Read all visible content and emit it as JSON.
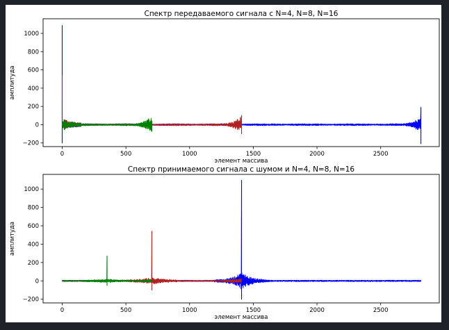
{
  "colors": {
    "blue": "#0000ff",
    "red": "#b22222",
    "green": "#008000",
    "frame": "#1e2229"
  },
  "chart_data": [
    {
      "type": "line",
      "title": "Спектр передаваемого сигнала с N=4, N=8, N=16",
      "xlabel": "элемент массива",
      "ylabel": "амплитуда",
      "xlim": [
        -150,
        2960
      ],
      "ylim": [
        -240,
        1160
      ],
      "xticks": [
        0,
        500,
        1000,
        1500,
        2000,
        2500
      ],
      "yticks": [
        -200,
        0,
        200,
        400,
        600,
        800,
        1000
      ],
      "grid": false,
      "series": [
        {
          "color": "blue",
          "x_range": [
            0,
            2816
          ],
          "peaks": [
            [
              0,
              1090
            ],
            [
              0,
              -200
            ],
            [
              2816,
              190
            ],
            [
              2816,
              -210
            ]
          ]
        },
        {
          "color": "red",
          "x_range": [
            0,
            1408
          ],
          "peaks": [
            [
              0,
              540
            ],
            [
              1408,
              100
            ],
            [
              1408,
              -100
            ]
          ]
        },
        {
          "color": "green",
          "x_range": [
            0,
            704
          ],
          "peaks": [
            [
              0,
              270
            ],
            [
              704,
              40
            ]
          ]
        }
      ]
    },
    {
      "type": "line",
      "title": "Спектр принимаемого сигнала с шумом и N=4, N=8, N=16",
      "xlabel": "элемент массива",
      "ylabel": "амплитуда",
      "xlim": [
        -150,
        2960
      ],
      "ylim": [
        -240,
        1160
      ],
      "xticks": [
        0,
        500,
        1000,
        1500,
        2000,
        2500
      ],
      "yticks": [
        -200,
        0,
        200,
        400,
        600,
        800,
        1000
      ],
      "grid": false,
      "series": [
        {
          "color": "blue",
          "x_range": [
            0,
            2816
          ],
          "peaks": [
            [
              1408,
              1095
            ],
            [
              1408,
              -200
            ]
          ]
        },
        {
          "color": "red",
          "x_range": [
            0,
            1408
          ],
          "peaks": [
            [
              704,
              540
            ],
            [
              704,
              -100
            ]
          ]
        },
        {
          "color": "green",
          "x_range": [
            0,
            704
          ],
          "peaks": [
            [
              352,
              270
            ],
            [
              352,
              -50
            ]
          ]
        }
      ]
    }
  ]
}
